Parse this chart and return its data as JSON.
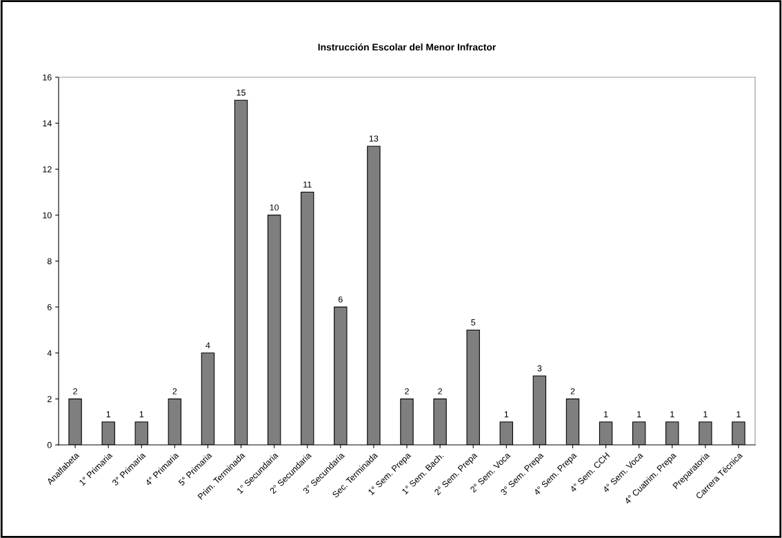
{
  "chart_data": {
    "type": "bar",
    "title": "Instrucción Escolar del Menor Infractor",
    "categories": [
      "Analfabeta",
      "1° Primaria",
      "3° Primaria",
      "4° Primaria",
      "5° Primaria",
      "Prim. Terminada",
      "1° Secundaria",
      "2° Secundaria",
      "3° Secundaria",
      "Sec. Terminada",
      "1° Sem. Prepa",
      "1° Sem. Bach.",
      "2° Sem. Prepa",
      "2° Sem. Voca",
      "3° Sem. Prepa",
      "4° Sem. Prepa",
      "4° Sem. CCH",
      "4° Sem. Voca",
      "4° Cuatrim. Prepa",
      "Preparatoria",
      "Carrera Técnica"
    ],
    "values": [
      2,
      1,
      1,
      2,
      4,
      15,
      10,
      11,
      6,
      13,
      2,
      2,
      5,
      1,
      3,
      2,
      1,
      1,
      1,
      1,
      1
    ],
    "color": "#7f7f7f",
    "ylim": [
      0,
      16
    ],
    "yticks": [
      0,
      2,
      4,
      6,
      8,
      10,
      12,
      14,
      16
    ],
    "grid": false,
    "data_labels": true
  }
}
